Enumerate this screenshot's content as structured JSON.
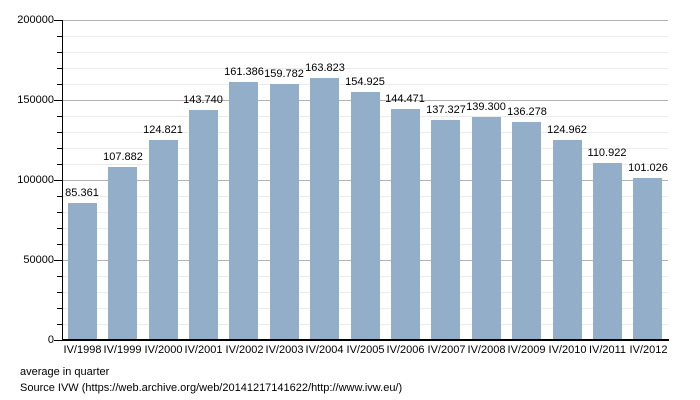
{
  "chart_data": {
    "type": "bar",
    "title": "",
    "xlabel": "",
    "ylabel": "",
    "categories": [
      "IV/1998",
      "IV/1999",
      "IV/2000",
      "IV/2001",
      "IV/2002",
      "IV/2003",
      "IV/2004",
      "IV/2005",
      "IV/2006",
      "IV/2007",
      "IV/2008",
      "IV/2009",
      "IV/2010",
      "IV/2011",
      "IV/2012"
    ],
    "values": [
      85361,
      107882,
      124821,
      143740,
      161386,
      159782,
      163823,
      154925,
      144471,
      137327,
      139300,
      136278,
      124962,
      110922,
      101026
    ],
    "value_labels": [
      "85.361",
      "107.882",
      "124.821",
      "143.740",
      "161.386",
      "159.782",
      "163.823",
      "154.925",
      "144.471",
      "137.327",
      "139.300",
      "136.278",
      "124.962",
      "110.922",
      "101.026"
    ],
    "ylim": [
      0,
      200000
    ],
    "y_major_step": 50000,
    "y_minor_step": 10000,
    "y_tick_labels": [
      "0",
      "50000",
      "100000",
      "150000",
      "200000"
    ],
    "grid": "horizontal-minor-and-major",
    "legend": "none"
  },
  "footer": {
    "line1": "average in quarter",
    "line2": "Source IVW (https://web.archive.org/web/20141217141622/http://www.ivw.eu/)"
  },
  "colors": {
    "bar_fill": "#92aec8",
    "grid_minor": "#ebebeb",
    "grid_major": "#b3b3b3",
    "axis": "#000000",
    "text": "#000000",
    "background": "#ffffff"
  }
}
